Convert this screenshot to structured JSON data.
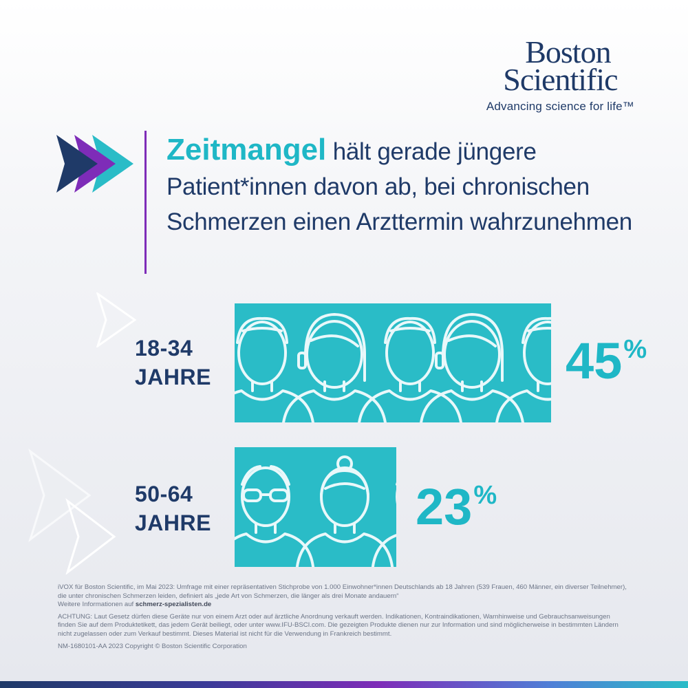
{
  "brand": {
    "logo_line1": "Boston",
    "logo_line2": "Scientific",
    "tagline": "Advancing science for life™"
  },
  "headline": {
    "emphasis": "Zeitmangel",
    "rest": "hält gerade jüngere Patient*innen davon ab, bei chronischen Schmerzen einen Arzttermin wahrzunehmen"
  },
  "colors": {
    "navy": "#1f3a68",
    "turquoise": "#2abcc7",
    "purple": "#7e2cb8",
    "figure_outline": "#e9f8fa"
  },
  "chart_data": {
    "type": "bar",
    "orientation": "horizontal",
    "unit": "%",
    "categories": [
      "18-34 JAHRE",
      "50-64 JAHRE"
    ],
    "values": [
      45,
      23
    ],
    "labels": [
      "45",
      "23"
    ],
    "value_suffix": "%",
    "rows": [
      {
        "age_line1": "18-34",
        "age_line2": "JAHRE",
        "icon": "young-people-icon"
      },
      {
        "age_line1": "50-64",
        "age_line2": "JAHRE",
        "icon": "older-people-icon"
      }
    ]
  },
  "footnote": {
    "source": "iVOX für Boston Scientific, im Mai 2023: Umfrage mit einer repräsentativen Stichprobe von 1.000 Einwohner*innen Deutschlands ab 18 Jahren (539 Frauen, 460 Männer, ein diverser Teilnehmer), die unter chronischen Schmerzen leiden, definiert als „jede Art von Schmerzen, die länger als drei Monate andauern“",
    "more_info_prefix": "Weitere Informationen auf ",
    "more_info_link": "schmerz-spezialisten.de",
    "warning": "ACHTUNG: Laut Gesetz dürfen diese Geräte nur von einem Arzt oder auf ärztliche Anordnung verkauft werden. Indikationen, Kontraindikationen, Warnhinweise und Gebrauchsanweisungen finden Sie auf dem Produktetikett, das jedem Gerät beiliegt, oder unter www.IFU-BSCI.com. Die gezeigten Produkte dienen nur zur Information und sind möglicherweise in bestimmten Ländern nicht zugelassen oder zum Verkauf bestimmt. Dieses Material ist nicht für die Verwendung in Frankreich bestimmt.",
    "copyright": "NM-1680101-AA 2023  Copyright © Boston Scientific Corporation"
  }
}
